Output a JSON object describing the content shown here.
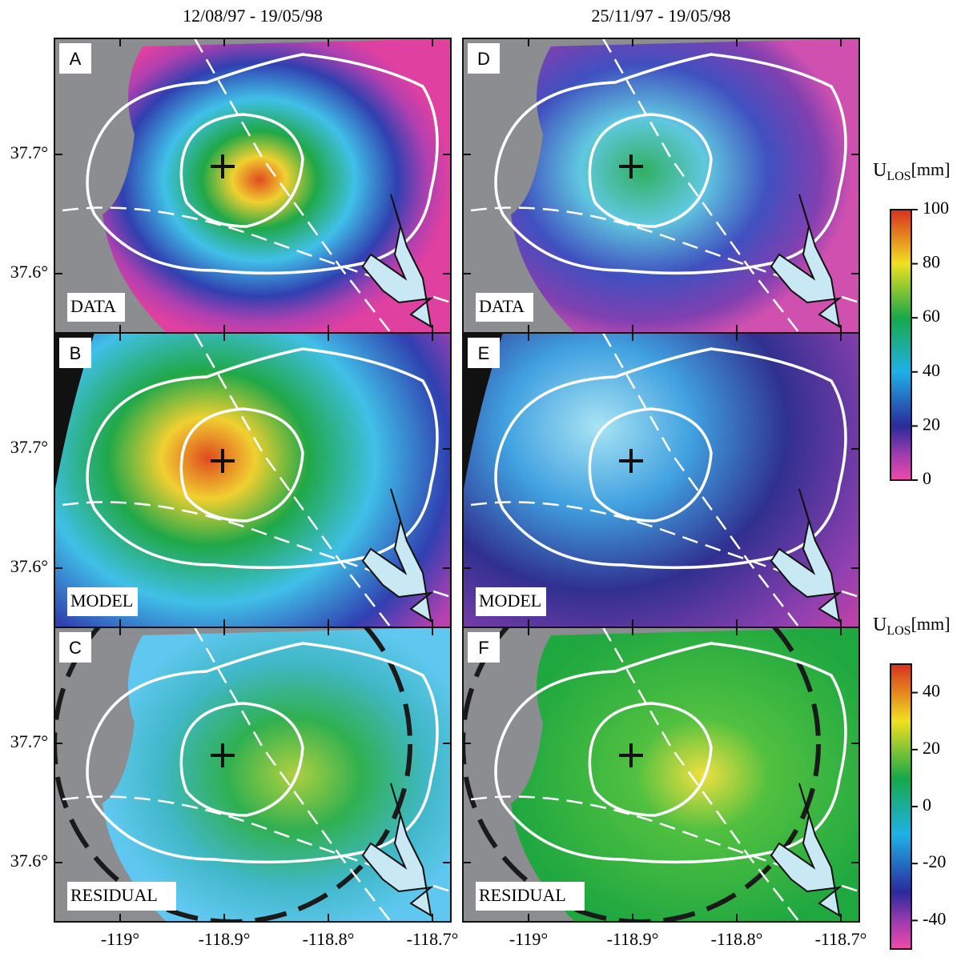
{
  "columns": [
    {
      "title": "12/08/97 - 19/05/98"
    },
    {
      "title": "25/11/97 - 19/05/98"
    }
  ],
  "panels": [
    {
      "letter": "A",
      "label": "DATA"
    },
    {
      "letter": "B",
      "label": "MODEL"
    },
    {
      "letter": "C",
      "label": "RESIDUAL"
    },
    {
      "letter": "D",
      "label": "DATA"
    },
    {
      "letter": "E",
      "label": "MODEL"
    },
    {
      "letter": "F",
      "label": "RESIDUAL"
    }
  ],
  "lat_ticks": [
    {
      "value": 37.7,
      "label": "37.7°"
    },
    {
      "value": 37.6,
      "label": "37.6°"
    }
  ],
  "lon_ticks": [
    {
      "value": -119,
      "label": "-119°"
    },
    {
      "value": -118.9,
      "label": "-118.9°"
    },
    {
      "value": -118.8,
      "label": "-118.8°"
    },
    {
      "value": -118.7,
      "label": "-118.7°"
    }
  ],
  "colorbars": [
    {
      "title": "U",
      "title_sub": "LOS",
      "title_unit": "[mm]",
      "lim": [
        0,
        100
      ],
      "ticks": [
        0,
        20,
        40,
        60,
        80,
        100
      ]
    },
    {
      "title": "U",
      "title_sub": "LOS",
      "title_unit": "[mm]",
      "lim": [
        -50,
        50
      ],
      "ticks": [
        -40,
        -20,
        0,
        20,
        40
      ]
    }
  ]
}
